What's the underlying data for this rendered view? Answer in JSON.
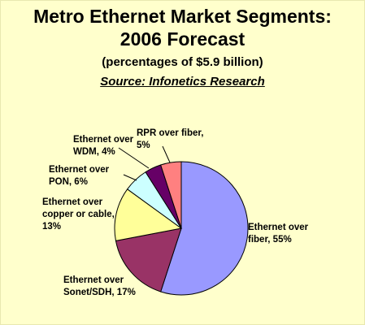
{
  "chart_data": {
    "type": "pie",
    "title": "Metro Ethernet Market Segments: 2006 Forecast",
    "title_lines": [
      "Metro Ethernet Market Segments:",
      "2006 Forecast"
    ],
    "subtitle": "(percentages of $5.9 billion)",
    "source": "Source: Infonetics Research",
    "slices": [
      {
        "name": "Ethernet over fiber",
        "value": 55,
        "label_lines": [
          "Ethernet over",
          "fiber, 55%"
        ],
        "color": "#9999FF"
      },
      {
        "name": "Ethernet over Sonet/SDH",
        "value": 17,
        "label_lines": [
          "Ethernet over",
          "Sonet/SDH, 17%"
        ],
        "color": "#993366"
      },
      {
        "name": "Ethernet over copper or cable",
        "value": 13,
        "label_lines": [
          "Ethernet over",
          "copper or cable,",
          "13%"
        ],
        "color": "#FFFF99"
      },
      {
        "name": "Ethernet over PON",
        "value": 6,
        "label_lines": [
          "Ethernet over",
          "PON, 6%"
        ],
        "color": "#CCFFFF"
      },
      {
        "name": "Ethernet over WDM",
        "value": 4,
        "label_lines": [
          "Ethernet over",
          "WDM, 4%"
        ],
        "color": "#660066"
      },
      {
        "name": "RPR over fiber",
        "value": 5,
        "label_lines": [
          "RPR over fiber,",
          "5%"
        ],
        "color": "#FF8080"
      }
    ]
  }
}
